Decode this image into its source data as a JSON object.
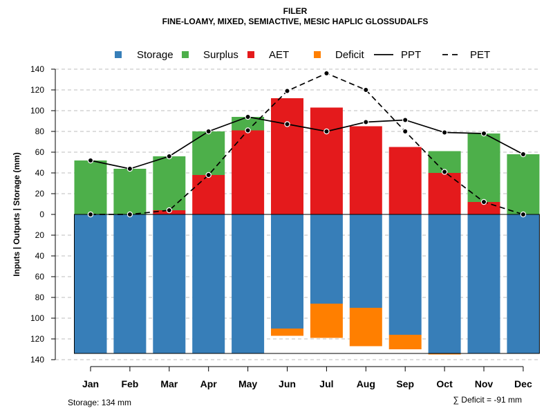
{
  "chart_data": {
    "type": "bar",
    "title": "FILER",
    "subtitle": "FINE-LOAMY, MIXED, SEMIACTIVE, MESIC HAPLIC GLOSSUDALFS",
    "ylabel": "Inputs | Outputs | Storage    (mm)",
    "ylim": [
      -140,
      140
    ],
    "yticks": [
      140,
      120,
      100,
      80,
      60,
      40,
      20,
      0,
      -20,
      -40,
      -60,
      -80,
      -100,
      -120,
      -140
    ],
    "ytick_labels": [
      "140",
      "120",
      "100",
      "80",
      "60",
      "40",
      "20",
      "0",
      "20",
      "40",
      "60",
      "80",
      "100",
      "120",
      "140"
    ],
    "categories": [
      "Jan",
      "Feb",
      "Mar",
      "Apr",
      "May",
      "Jun",
      "Jul",
      "Aug",
      "Sep",
      "Oct",
      "Nov",
      "Dec"
    ],
    "legend": [
      {
        "label": "Storage",
        "kind": "box",
        "color": "#377EB8"
      },
      {
        "label": "Surplus",
        "kind": "box",
        "color": "#4DAF4A"
      },
      {
        "label": "AET",
        "kind": "box",
        "color": "#E41A1C"
      },
      {
        "label": "Deficit",
        "kind": "box",
        "color": "#FF7F00"
      },
      {
        "label": "PPT",
        "kind": "solid",
        "color": "#000000"
      },
      {
        "label": "PET",
        "kind": "dashed",
        "color": "#000000"
      }
    ],
    "colors": {
      "storage": "#377EB8",
      "surplus": "#4DAF4A",
      "aet": "#E41A1C",
      "deficit": "#FF7F00",
      "grid": "#BEBEBE"
    },
    "storage_capacity": 134,
    "series": [
      {
        "name": "AET",
        "values": [
          0,
          0,
          4,
          38,
          81,
          112,
          103,
          85,
          65,
          40,
          12,
          0
        ]
      },
      {
        "name": "Surplus",
        "values": [
          52,
          44,
          52,
          42,
          13,
          0,
          0,
          0,
          0,
          21,
          66,
          58
        ]
      },
      {
        "name": "Storage",
        "values": [
          134,
          134,
          134,
          134,
          134,
          110,
          86,
          90,
          116,
          134,
          134,
          134
        ]
      },
      {
        "name": "Deficit",
        "values": [
          0,
          0,
          0,
          0,
          0,
          7,
          33,
          37,
          14,
          1,
          0,
          0
        ]
      },
      {
        "name": "PPT",
        "values": [
          52,
          44,
          56,
          80,
          94,
          87,
          80,
          89,
          91,
          79,
          78,
          58
        ]
      },
      {
        "name": "PET",
        "values": [
          0,
          0,
          4,
          38,
          81,
          119,
          136,
          120,
          80,
          41,
          12,
          0
        ]
      }
    ],
    "footer_left": "Storage: 134 mm",
    "footer_right": "∑ Deficit = -91 mm"
  }
}
